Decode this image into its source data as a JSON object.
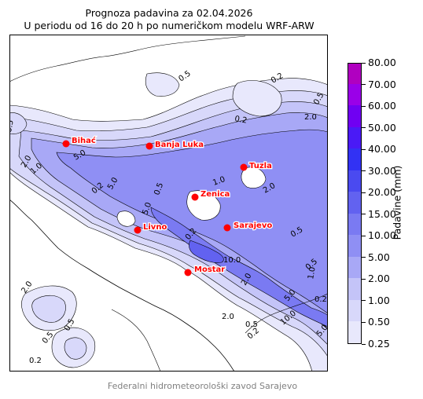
{
  "title_line1": "Prognoza padavina za 02.04.2026",
  "title_line2": "U periodu od 16 do 20 h po numeričkom modelu WRF-ARW",
  "colorbar": {
    "label": "Padavine (mm)",
    "levels": [
      "0.25",
      "0.50",
      "1.00",
      "2.00",
      "5.00",
      "10.00",
      "15.00",
      "20.00",
      "30.00",
      "40.00",
      "50.00",
      "60.00",
      "70.00",
      "80.00"
    ],
    "colors": [
      "#e8e8fc",
      "#d8d8fa",
      "#c4c4f8",
      "#a8a8f6",
      "#8f8ff4",
      "#7a7af2",
      "#6262f0",
      "#4a4af0",
      "#3232f4",
      "#4a1af6",
      "#7000f2",
      "#9a00e8",
      "#b000c0"
    ]
  },
  "cities": [
    {
      "name": "Bihać"
    },
    {
      "name": "Banja Luka"
    },
    {
      "name": "Tuzla"
    },
    {
      "name": "Zenica"
    },
    {
      "name": "Livno"
    },
    {
      "name": "Sarajevo"
    },
    {
      "name": "Mostar"
    }
  ],
  "contour_labels": [
    "0.5",
    "0.2",
    "0.5",
    "0.2",
    "2.0",
    "5.0",
    "2.0",
    "0.5",
    "1.0",
    "5.0",
    "0.2",
    "2.0",
    "1.0",
    "5.0",
    "10.0",
    "0.5",
    "0.2",
    "2.0",
    "0.5",
    "0.2",
    "0.5",
    "0.5",
    "5.0",
    "1.0",
    "0.2",
    "10.0",
    "5.0",
    "2.0",
    "0.5",
    "0.2",
    "2.0",
    "0.5"
  ],
  "credit": "Federalni hidrometeorološki zavod Sarajevo",
  "icons": {
    "city_marker": "red-dot-icon"
  }
}
